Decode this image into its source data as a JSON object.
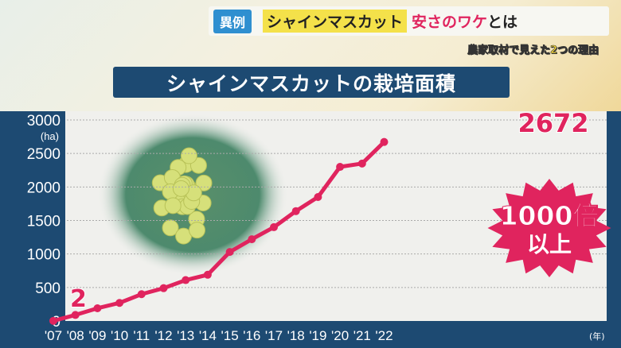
{
  "header": {
    "badge": "異例",
    "main": "シャインマスカット",
    "highlight": "安さのワケ",
    "tail": "とは",
    "subtitle": "農家取材で見えた2つの理由"
  },
  "title": "シャインマスカットの栽培面積",
  "callout": {
    "line1": "1000倍",
    "line2": "以上"
  },
  "colors": {
    "line": "#e0245e",
    "axis_bg": "#1d4a72",
    "title_bg": "#1d4a72",
    "badge": "#2f8fd0",
    "highlight_bg": "#f4e14a"
  },
  "chart_data": {
    "type": "line",
    "categories": [
      "'07",
      "'08",
      "'09",
      "'10",
      "'11",
      "'12",
      "'13",
      "'14",
      "'15",
      "'16",
      "'17",
      "'18",
      "'19",
      "'20",
      "'21",
      "'22"
    ],
    "values": [
      2,
      90,
      190,
      270,
      400,
      490,
      610,
      690,
      1030,
      1220,
      1400,
      1640,
      1850,
      2300,
      2350,
      2672
    ],
    "ylabel": "(ha)",
    "xlabel": "(年)",
    "ylim": [
      0,
      3000
    ],
    "yticks": [
      "0",
      "500",
      "1000",
      "1500",
      "2000",
      "2500",
      "3000"
    ],
    "data_labels": {
      "first": "2",
      "last": "2672"
    },
    "grid": true
  }
}
